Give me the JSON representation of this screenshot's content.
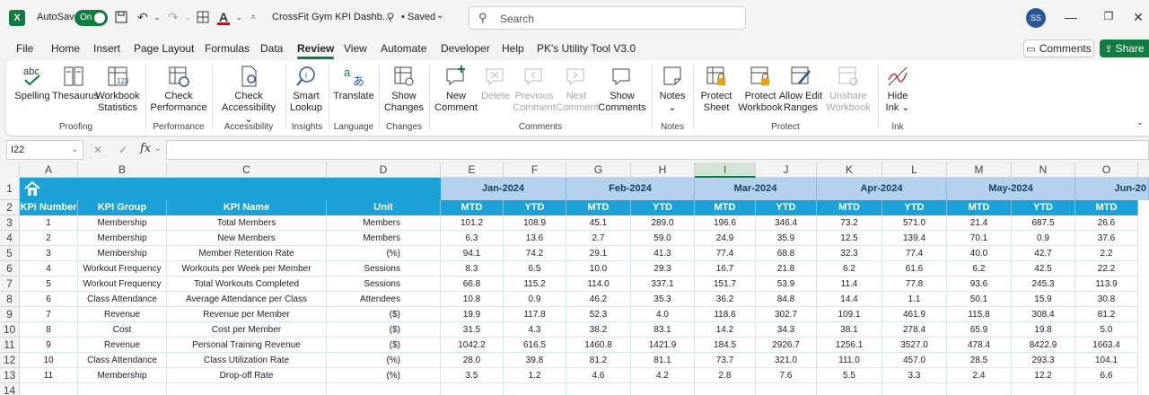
{
  "titlebar": {
    "app_logo": "X",
    "autosave_label": "AutoSave",
    "autosave_state": "On",
    "doc_title": "CrossFit Gym KPI Dashb...",
    "saved_status": "• Saved",
    "search_placeholder": "Search",
    "user_initials": "SS"
  },
  "menu": {
    "tabs": [
      "File",
      "Home",
      "Insert",
      "Page Layout",
      "Formulas",
      "Data",
      "Review",
      "View",
      "Automate",
      "Developer",
      "Help",
      "PK's Utility Tool V3.0"
    ],
    "active_tab": "Review",
    "comments_label": "Comments",
    "share_label": "Share"
  },
  "ribbon": {
    "buttons": {
      "spelling": "Spelling",
      "thesaurus": "Thesaurus",
      "workbook_stats_1": "Workbook",
      "workbook_stats_2": "Statistics",
      "check_perf_1": "Check",
      "check_perf_2": "Performance",
      "check_acc_1": "Check",
      "check_acc_2": "Accessibility",
      "smart_1": "Smart",
      "smart_2": "Lookup",
      "translate": "Translate",
      "show_changes_1": "Show",
      "show_changes_2": "Changes",
      "new_comment_1": "New",
      "new_comment_2": "Comment",
      "delete": "Delete",
      "prev_1": "Previous",
      "prev_2": "Comment",
      "next_1": "Next",
      "next_2": "Comment",
      "show_comments_1": "Show",
      "show_comments_2": "Comments",
      "notes": "Notes",
      "protect_sheet_1": "Protect",
      "protect_sheet_2": "Sheet",
      "protect_wb_1": "Protect",
      "protect_wb_2": "Workbook",
      "allow_edit_1": "Allow Edit",
      "allow_edit_2": "Ranges",
      "unshare_1": "Unshare",
      "unshare_2": "Workbook",
      "hide_ink_1": "Hide",
      "hide_ink_2": "Ink"
    },
    "groups": {
      "proofing": "Proofing",
      "performance": "Performance",
      "accessibility": "Accessibility",
      "insights": "Insights",
      "language": "Language",
      "changes": "Changes",
      "comments": "Comments",
      "notes": "Notes",
      "protect": "Protect",
      "ink": "Ink"
    }
  },
  "formula_bar": {
    "name_box": "I22",
    "fx": "fx",
    "value": ""
  },
  "grid": {
    "columns": [
      "A",
      "B",
      "C",
      "D",
      "E",
      "F",
      "G",
      "H",
      "I",
      "J",
      "K",
      "L",
      "M",
      "N",
      "O"
    ],
    "rows": [
      "1",
      "2",
      "3",
      "4",
      "5",
      "6",
      "7",
      "8",
      "9",
      "10",
      "11",
      "12",
      "13",
      "14"
    ],
    "months": [
      "Jan-2024",
      "Feb-2024",
      "Mar-2024",
      "Apr-2024",
      "May-2024",
      "Jun-20"
    ],
    "headers": [
      "KPI Number",
      "KPI Group",
      "KPI Name",
      "Unit"
    ],
    "sub_headers": [
      "MTD",
      "YTD",
      "MTD",
      "YTD",
      "MTD",
      "YTD",
      "MTD",
      "YTD",
      "MTD",
      "YTD",
      "MTD"
    ],
    "data": [
      [
        "1",
        "Membership",
        "Total Members",
        "Members",
        "101.2",
        "108.9",
        "45.1",
        "289.0",
        "196.6",
        "346.4",
        "73.2",
        "571.0",
        "21.4",
        "687.5",
        "26.6"
      ],
      [
        "2",
        "Membership",
        "New Members",
        "Members",
        "6.3",
        "13.6",
        "2.7",
        "59.0",
        "24.9",
        "35.9",
        "12.5",
        "139.4",
        "70.1",
        "0.9",
        "37.6"
      ],
      [
        "3",
        "Membership",
        "Member Retention Rate",
        "(%)",
        "94.1",
        "74.2",
        "29.1",
        "41.3",
        "77.4",
        "68.8",
        "32.3",
        "77.4",
        "40.0",
        "42.7",
        "2.2"
      ],
      [
        "4",
        "Workout Frequency",
        "Workouts per Week per Member",
        "Sessions",
        "8.3",
        "6.5",
        "10.0",
        "29.3",
        "16.7",
        "21.8",
        "6.2",
        "61.6",
        "6.2",
        "42.5",
        "22.2"
      ],
      [
        "5",
        "Workout Frequency",
        "Total Workouts Completed",
        "Sessions",
        "66.8",
        "115.2",
        "114.0",
        "337.1",
        "151.7",
        "53.9",
        "11.4",
        "77.8",
        "93.6",
        "245.3",
        "113.9"
      ],
      [
        "6",
        "Class Attendance",
        "Average Attendance per Class",
        "Attendees",
        "10.8",
        "0.9",
        "46.2",
        "35.3",
        "36.2",
        "84.8",
        "14.4",
        "1.1",
        "50.1",
        "15.9",
        "30.8"
      ],
      [
        "7",
        "Revenue",
        "Revenue per Member",
        "($)",
        "19.9",
        "117.8",
        "52.3",
        "4.0",
        "118.6",
        "302.7",
        "109.1",
        "461.9",
        "115.8",
        "308.4",
        "81.2"
      ],
      [
        "8",
        "Cost",
        "Cost per Member",
        "($)",
        "31.5",
        "4.3",
        "38.2",
        "83.1",
        "14.2",
        "34.3",
        "38.1",
        "278.4",
        "65.9",
        "19.8",
        "5.0"
      ],
      [
        "9",
        "Revenue",
        "Personal Training Revenue",
        "($)",
        "1042.2",
        "616.5",
        "1460.8",
        "1421.9",
        "184.5",
        "2926.7",
        "1256.1",
        "3527.0",
        "478.4",
        "8422.9",
        "1663.4"
      ],
      [
        "10",
        "Class Attendance",
        "Class Utilization Rate",
        "(%)",
        "28.0",
        "39.8",
        "81.2",
        "81.1",
        "73.7",
        "321.0",
        "111.0",
        "457.0",
        "28.5",
        "293.3",
        "104.1"
      ],
      [
        "11",
        "Membership",
        "Drop-off Rate",
        "(%)",
        "3.5",
        "1.2",
        "4.6",
        "4.2",
        "2.8",
        "7.6",
        "5.5",
        "3.3",
        "2.4",
        "12.2",
        "6.6"
      ]
    ]
  }
}
